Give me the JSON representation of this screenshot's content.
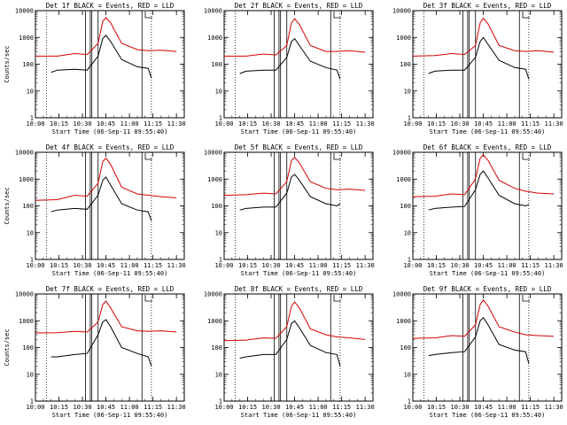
{
  "chart_data": [
    {
      "type": "line",
      "title": "Det 1f BLACK = Events, RED = LLD",
      "xlabel": "Start Time (06-Sep-11 09:55:40)",
      "ylabel": "Counts/sec",
      "yscale": "log",
      "ylim": [
        1,
        10000
      ],
      "xlim": [
        "10:00",
        "11:35"
      ],
      "x_ticks": [
        "10:00",
        "10:15",
        "10:30",
        "10:45",
        "11:00",
        "11:15",
        "11:30"
      ],
      "y_ticks": [
        "1",
        "10",
        "100",
        "1000",
        "10000"
      ],
      "series": [
        {
          "color": "#000000",
          "x": [
            "10:10",
            "10:14",
            "10:25",
            "10:33",
            "10:40",
            "10:43",
            "10:45",
            "10:48",
            "10:55",
            "11:05",
            "11:12",
            "11:14"
          ],
          "y": [
            50,
            60,
            65,
            60,
            200,
            900,
            1200,
            700,
            150,
            80,
            70,
            30
          ]
        },
        {
          "color": "#d40000",
          "x": [
            "10:00",
            "10:14",
            "10:25",
            "10:33",
            "10:40",
            "10:43",
            "10:45",
            "10:48",
            "10:55",
            "11:05",
            "11:12",
            "11:20",
            "11:30"
          ],
          "y": [
            200,
            200,
            250,
            230,
            600,
            4000,
            5500,
            3500,
            600,
            350,
            320,
            330,
            300
          ]
        }
      ],
      "vlines_solid": [
        "10:32",
        "10:35",
        "10:36",
        "10:40",
        "11:08"
      ],
      "vlines_dotted": [
        "10:07",
        "11:14"
      ]
    },
    {
      "type": "line",
      "title": "Det 2f BLACK = Events, RED = LLD",
      "xlabel": "Start Time (06-Sep-11 09:55:40)",
      "ylabel": "",
      "yscale": "log",
      "ylim": [
        1,
        10000
      ],
      "xlim": [
        "10:00",
        "11:35"
      ],
      "x_ticks": [
        "10:00",
        "10:15",
        "10:30",
        "10:45",
        "11:00",
        "11:15",
        "11:30"
      ],
      "y_ticks": [
        "1",
        "10",
        "100",
        "1000",
        "10000"
      ],
      "series": [
        {
          "color": "#000000",
          "x": [
            "10:10",
            "10:14",
            "10:25",
            "10:33",
            "10:40",
            "10:43",
            "10:45",
            "10:48",
            "10:55",
            "11:05",
            "11:12",
            "11:14"
          ],
          "y": [
            45,
            55,
            60,
            60,
            180,
            700,
            900,
            500,
            130,
            75,
            60,
            28
          ]
        },
        {
          "color": "#d40000",
          "x": [
            "10:00",
            "10:14",
            "10:25",
            "10:33",
            "10:40",
            "10:43",
            "10:45",
            "10:48",
            "10:55",
            "11:05",
            "11:12",
            "11:20",
            "11:30"
          ],
          "y": [
            200,
            200,
            240,
            220,
            500,
            3500,
            5000,
            3000,
            500,
            300,
            300,
            320,
            280
          ]
        }
      ],
      "vlines_solid": [
        "10:32",
        "10:35",
        "10:36",
        "10:40",
        "11:08"
      ],
      "vlines_dotted": [
        "10:07",
        "11:14"
      ]
    },
    {
      "type": "line",
      "title": "Det 3f BLACK = Events, RED = LLD",
      "xlabel": "Start Time (06-Sep-11 09:55:40)",
      "ylabel": "",
      "yscale": "log",
      "ylim": [
        1,
        10000
      ],
      "xlim": [
        "10:00",
        "11:35"
      ],
      "x_ticks": [
        "10:00",
        "10:15",
        "10:30",
        "10:45",
        "11:00",
        "11:15",
        "11:30"
      ],
      "y_ticks": [
        "1",
        "10",
        "100",
        "1000",
        "10000"
      ],
      "series": [
        {
          "color": "#000000",
          "x": [
            "10:10",
            "10:14",
            "10:25",
            "10:33",
            "10:40",
            "10:43",
            "10:45",
            "10:48",
            "10:55",
            "11:05",
            "11:12",
            "11:14"
          ],
          "y": [
            45,
            55,
            60,
            60,
            180,
            700,
            1000,
            550,
            140,
            75,
            65,
            28
          ]
        },
        {
          "color": "#d40000",
          "x": [
            "10:00",
            "10:14",
            "10:25",
            "10:33",
            "10:40",
            "10:43",
            "10:45",
            "10:48",
            "10:55",
            "11:05",
            "11:12",
            "11:20",
            "11:30"
          ],
          "y": [
            200,
            210,
            250,
            230,
            500,
            3500,
            5200,
            3200,
            500,
            320,
            300,
            320,
            280
          ]
        }
      ],
      "vlines_solid": [
        "10:32",
        "10:35",
        "10:36",
        "10:40",
        "11:08"
      ],
      "vlines_dotted": [
        "10:07",
        "11:14"
      ]
    },
    {
      "type": "line",
      "title": "Det 4f BLACK = Events, RED = LLD",
      "xlabel": "Start Time (06-Sep-11 09:55:40)",
      "ylabel": "Counts/sec",
      "yscale": "log",
      "ylim": [
        1,
        10000
      ],
      "xlim": [
        "10:00",
        "11:35"
      ],
      "x_ticks": [
        "10:00",
        "10:15",
        "10:30",
        "10:45",
        "11:00",
        "11:15",
        "11:30"
      ],
      "y_ticks": [
        "1",
        "10",
        "100",
        "1000",
        "10000"
      ],
      "series": [
        {
          "color": "#000000",
          "x": [
            "10:10",
            "10:14",
            "10:25",
            "10:33",
            "10:40",
            "10:43",
            "10:45",
            "10:48",
            "10:55",
            "11:05",
            "11:12",
            "11:14"
          ],
          "y": [
            60,
            70,
            80,
            75,
            250,
            900,
            1200,
            600,
            120,
            70,
            60,
            28
          ]
        },
        {
          "color": "#d40000",
          "x": [
            "10:00",
            "10:14",
            "10:25",
            "10:33",
            "10:40",
            "10:43",
            "10:45",
            "10:48",
            "10:55",
            "11:05",
            "11:12",
            "11:20",
            "11:30"
          ],
          "y": [
            160,
            170,
            250,
            230,
            700,
            4500,
            6000,
            3500,
            500,
            280,
            250,
            220,
            200
          ]
        }
      ],
      "vlines_solid": [
        "10:32",
        "10:35",
        "10:36",
        "10:40",
        "11:08"
      ],
      "vlines_dotted": [
        "10:07",
        "11:14"
      ]
    },
    {
      "type": "line",
      "title": "Det 5f BLACK = Events, RED = LLD",
      "xlabel": "Start Time (06-Sep-11 09:55:40)",
      "ylabel": "",
      "yscale": "log",
      "ylim": [
        1,
        10000
      ],
      "xlim": [
        "10:00",
        "11:35"
      ],
      "x_ticks": [
        "10:00",
        "10:15",
        "10:30",
        "10:45",
        "11:00",
        "11:15",
        "11:30"
      ],
      "y_ticks": [
        "1",
        "10",
        "100",
        "1000",
        "10000"
      ],
      "series": [
        {
          "color": "#000000",
          "x": [
            "10:10",
            "10:14",
            "10:25",
            "10:33",
            "10:40",
            "10:43",
            "10:45",
            "10:48",
            "10:55",
            "11:05",
            "11:12",
            "11:14"
          ],
          "y": [
            70,
            80,
            90,
            90,
            300,
            1200,
            1500,
            900,
            220,
            120,
            100,
            120
          ]
        },
        {
          "color": "#d40000",
          "x": [
            "10:00",
            "10:14",
            "10:25",
            "10:33",
            "10:40",
            "10:43",
            "10:45",
            "10:48",
            "10:55",
            "11:05",
            "11:12",
            "11:20",
            "11:30"
          ],
          "y": [
            250,
            260,
            300,
            280,
            800,
            5000,
            6500,
            4000,
            800,
            450,
            400,
            420,
            380
          ]
        }
      ],
      "vlines_solid": [
        "10:32",
        "10:35",
        "10:36",
        "10:40",
        "11:08"
      ],
      "vlines_dotted": [
        "10:07",
        "11:14"
      ]
    },
    {
      "type": "line",
      "title": "Det 6f BLACK = Events, RED = LLD",
      "xlabel": "Start Time (06-Sep-11 09:55:40)",
      "ylabel": "",
      "yscale": "log",
      "ylim": [
        1,
        10000
      ],
      "xlim": [
        "10:00",
        "11:35"
      ],
      "x_ticks": [
        "10:00",
        "10:15",
        "10:30",
        "10:45",
        "11:00",
        "11:15",
        "11:30"
      ],
      "y_ticks": [
        "1",
        "10",
        "100",
        "1000",
        "10000"
      ],
      "series": [
        {
          "color": "#000000",
          "x": [
            "10:10",
            "10:14",
            "10:25",
            "10:33",
            "10:40",
            "10:43",
            "10:45",
            "10:48",
            "10:55",
            "11:05",
            "11:12",
            "11:14"
          ],
          "y": [
            70,
            80,
            90,
            95,
            400,
            1500,
            2000,
            1100,
            250,
            120,
            100,
            110
          ]
        },
        {
          "color": "#d40000",
          "x": [
            "10:00",
            "10:14",
            "10:25",
            "10:33",
            "10:40",
            "10:43",
            "10:45",
            "10:48",
            "10:55",
            "11:05",
            "11:12",
            "11:20",
            "11:30"
          ],
          "y": [
            220,
            230,
            280,
            260,
            1000,
            6000,
            8000,
            5000,
            900,
            450,
            350,
            300,
            280
          ]
        }
      ],
      "vlines_solid": [
        "10:32",
        "10:35",
        "10:36",
        "10:40",
        "11:08"
      ],
      "vlines_dotted": [
        "10:07",
        "11:14"
      ]
    },
    {
      "type": "line",
      "title": "Det 7f BLACK = Events, RED = LLD",
      "xlabel": "Start Time (06-Sep-11 09:55:40)",
      "ylabel": "Counts/sec",
      "yscale": "log",
      "ylim": [
        1,
        10000
      ],
      "xlim": [
        "10:00",
        "11:35"
      ],
      "x_ticks": [
        "10:00",
        "10:15",
        "10:30",
        "10:45",
        "11:00",
        "11:15",
        "11:30"
      ],
      "y_ticks": [
        "1",
        "10",
        "100",
        "1000",
        "10000"
      ],
      "series": [
        {
          "color": "#000000",
          "x": [
            "10:10",
            "10:14",
            "10:25",
            "10:33",
            "10:40",
            "10:43",
            "10:45",
            "10:48",
            "10:55",
            "11:05",
            "11:12",
            "11:14"
          ],
          "y": [
            45,
            45,
            55,
            60,
            300,
            900,
            1100,
            600,
            100,
            60,
            45,
            20
          ]
        },
        {
          "color": "#d40000",
          "x": [
            "10:00",
            "10:14",
            "10:25",
            "10:33",
            "10:40",
            "10:43",
            "10:45",
            "10:48",
            "10:55",
            "11:05",
            "11:12",
            "11:20",
            "11:30"
          ],
          "y": [
            350,
            360,
            400,
            380,
            900,
            4000,
            5500,
            3000,
            600,
            420,
            400,
            420,
            380
          ]
        }
      ],
      "vlines_solid": [
        "10:32",
        "10:35",
        "10:36",
        "10:40",
        "11:08"
      ],
      "vlines_dotted": [
        "10:07",
        "11:14"
      ]
    },
    {
      "type": "line",
      "title": "Det 8f BLACK = Events, RED = LLD",
      "xlabel": "Start Time (06-Sep-11 09:55:40)",
      "ylabel": "",
      "yscale": "log",
      "ylim": [
        1,
        10000
      ],
      "xlim": [
        "10:00",
        "11:35"
      ],
      "x_ticks": [
        "10:00",
        "10:15",
        "10:30",
        "10:45",
        "11:00",
        "11:15",
        "11:30"
      ],
      "y_ticks": [
        "1",
        "10",
        "100",
        "1000",
        "10000"
      ],
      "series": [
        {
          "color": "#000000",
          "x": [
            "10:10",
            "10:14",
            "10:25",
            "10:33",
            "10:40",
            "10:43",
            "10:45",
            "10:48",
            "10:55",
            "11:05",
            "11:12",
            "11:14"
          ],
          "y": [
            40,
            45,
            55,
            55,
            200,
            800,
            1000,
            550,
            120,
            65,
            55,
            20
          ]
        },
        {
          "color": "#d40000",
          "x": [
            "10:00",
            "10:14",
            "10:25",
            "10:33",
            "10:40",
            "10:43",
            "10:45",
            "10:48",
            "10:55",
            "11:05",
            "11:12",
            "11:20",
            "11:30"
          ],
          "y": [
            180,
            190,
            230,
            220,
            600,
            3500,
            5000,
            3000,
            500,
            300,
            250,
            230,
            200
          ]
        }
      ],
      "vlines_solid": [
        "10:32",
        "10:35",
        "10:36",
        "10:40",
        "11:08"
      ],
      "vlines_dotted": [
        "10:07",
        "11:14"
      ]
    },
    {
      "type": "line",
      "title": "Det 9f BLACK = Events, RED = LLD",
      "xlabel": "Start Time (06-Sep-11 09:55:40)",
      "ylabel": "",
      "yscale": "log",
      "ylim": [
        1,
        10000
      ],
      "xlim": [
        "10:00",
        "11:35"
      ],
      "x_ticks": [
        "10:00",
        "10:15",
        "10:30",
        "10:45",
        "11:00",
        "11:15",
        "11:30"
      ],
      "y_ticks": [
        "1",
        "10",
        "100",
        "1000",
        "10000"
      ],
      "series": [
        {
          "color": "#000000",
          "x": [
            "10:10",
            "10:14",
            "10:25",
            "10:33",
            "10:40",
            "10:43",
            "10:45",
            "10:48",
            "10:55",
            "11:05",
            "11:12",
            "11:14"
          ],
          "y": [
            50,
            55,
            65,
            70,
            250,
            1000,
            1300,
            700,
            130,
            80,
            70,
            25
          ]
        },
        {
          "color": "#d40000",
          "x": [
            "10:00",
            "10:14",
            "10:25",
            "10:33",
            "10:40",
            "10:43",
            "10:45",
            "10:48",
            "10:55",
            "11:05",
            "11:12",
            "11:20",
            "11:30"
          ],
          "y": [
            220,
            230,
            280,
            260,
            700,
            4000,
            6000,
            3500,
            600,
            380,
            300,
            280,
            260
          ]
        }
      ],
      "vlines_solid": [
        "10:32",
        "10:35",
        "10:36",
        "10:40",
        "11:08"
      ],
      "vlines_dotted": [
        "10:07",
        "11:14"
      ]
    }
  ]
}
